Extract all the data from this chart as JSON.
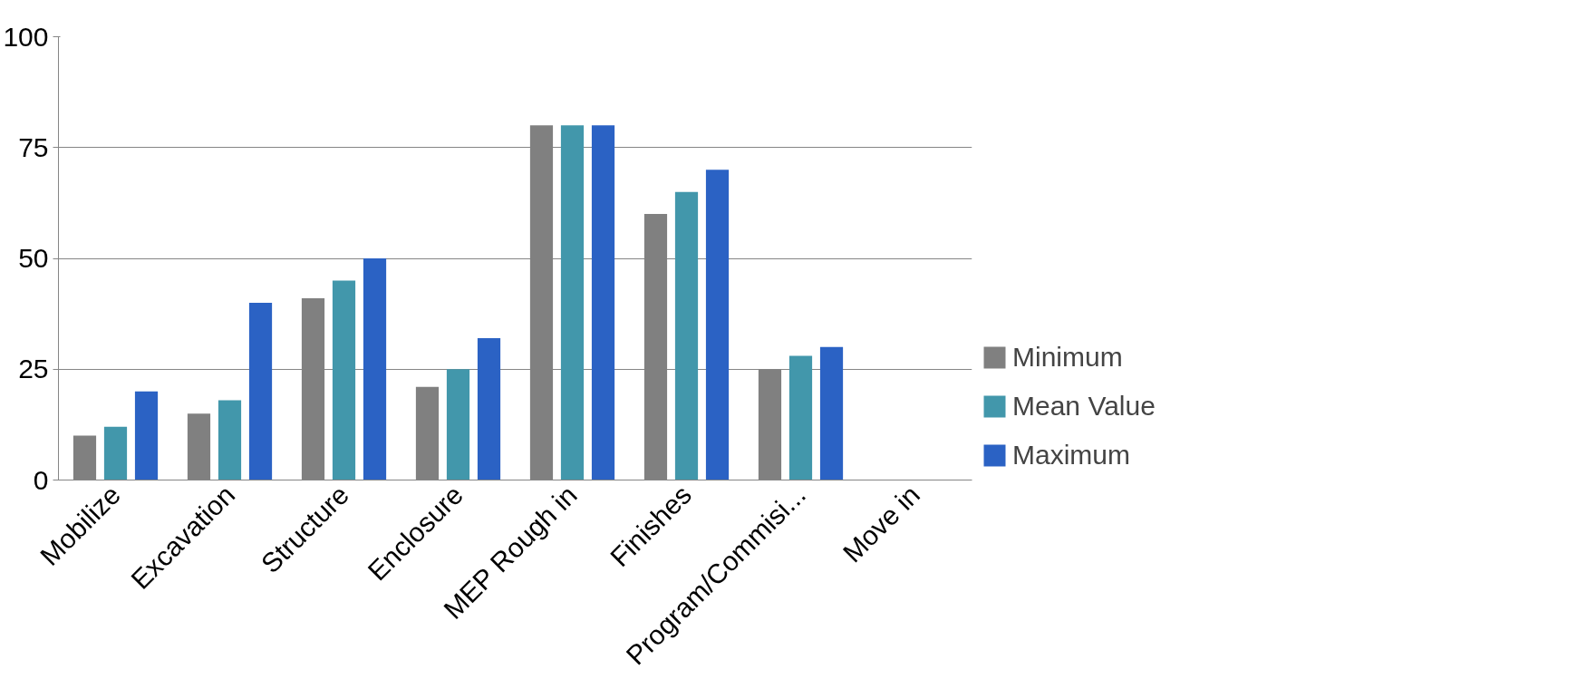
{
  "chart_data": {
    "type": "bar",
    "categories": [
      "Mobilize",
      "Excavation",
      "Structure",
      "Enclosure",
      "MEP Rough in",
      "Finishes",
      "Program/Commisi...",
      "Move in"
    ],
    "series": [
      {
        "name": "Minimum",
        "color": "#808080",
        "values": [
          10,
          15,
          41,
          21,
          80,
          60,
          25,
          null
        ]
      },
      {
        "name": "Mean Value",
        "color": "#4297ab",
        "values": [
          12,
          18,
          45,
          25,
          80,
          65,
          28,
          null
        ]
      },
      {
        "name": "Maximum",
        "color": "#2b62c4",
        "values": [
          20,
          40,
          50,
          32,
          80,
          70,
          30,
          null
        ]
      }
    ],
    "ylim": [
      0,
      100
    ],
    "yticks": [
      0,
      25,
      50,
      75,
      100
    ],
    "grid": "y",
    "legend": "bottom right"
  }
}
